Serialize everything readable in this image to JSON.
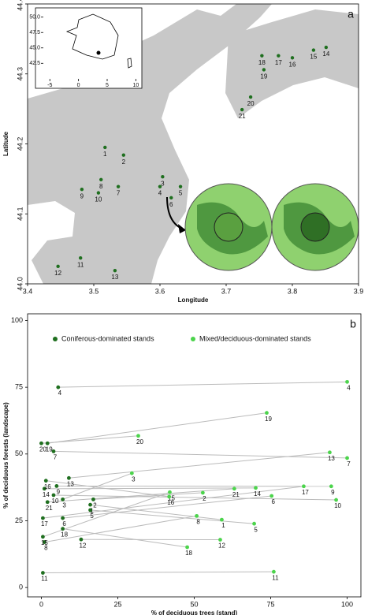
{
  "chart_data": [
    {
      "type": "map",
      "panel_label": "a",
      "xlabel": "Longitude",
      "ylabel": "Latitude",
      "xlim": [
        3.4,
        3.9
      ],
      "ylim": [
        44.0,
        44.4
      ],
      "xticks": [
        3.4,
        3.5,
        3.6,
        3.7,
        3.8,
        3.9
      ],
      "yticks": [
        {
          "value": 44,
          "label": "44.0"
        },
        44.1,
        44.2,
        44.3,
        44.4
      ],
      "color": "#1f6f1f",
      "labels": [
        "1",
        "2",
        "3",
        "4",
        "5",
        "6",
        "7",
        "8",
        "9",
        "10",
        "11",
        "12",
        "13",
        "14",
        "15",
        "16",
        "17",
        "18",
        "19",
        "20",
        "21"
      ],
      "x": [
        3.517,
        3.545,
        3.604,
        3.6,
        3.631,
        3.617,
        3.537,
        3.511,
        3.482,
        3.507,
        3.48,
        3.446,
        3.532,
        3.851,
        3.832,
        3.8,
        3.779,
        3.754,
        3.757,
        3.737,
        3.724
      ],
      "y": [
        44.195,
        44.184,
        44.153,
        44.139,
        44.139,
        44.123,
        44.139,
        44.149,
        44.135,
        44.13,
        44.037,
        44.025,
        44.019,
        44.338,
        44.334,
        44.323,
        44.326,
        44.326,
        44.306,
        44.267,
        44.249
      ]
    },
    {
      "type": "inset",
      "xlim": [
        -6,
        10.5
      ],
      "ylim": [
        41,
        51.5
      ],
      "xticks": [
        -5,
        0,
        5,
        10
      ],
      "yticks": [
        42.5,
        {
          "value": 45,
          "label": "45.0"
        },
        47.5,
        {
          "value": 50,
          "label": "50.0"
        }
      ]
    },
    {
      "type": "scatter",
      "panel_label": "b",
      "xlabel": "% of deciduous trees (stand)",
      "ylabel": "% of deciduous forests (landscape)",
      "xlim": [
        -4.5,
        104.5
      ],
      "ylim": [
        -3.5,
        102.5
      ],
      "xticks": [
        0,
        25,
        50,
        75,
        100
      ],
      "yticks": [
        0,
        25,
        50,
        75,
        100
      ],
      "labels": [
        "1",
        "2",
        "3",
        "4",
        "5",
        "6",
        "7",
        "8",
        "9",
        "10",
        "11",
        "12",
        "13",
        "14",
        "15",
        "16",
        "17",
        "18",
        "19",
        "20",
        "21"
      ],
      "series": [
        {
          "name": "Coniferous-dominated stands",
          "color": "#1f6f1f",
          "x": [
            16,
            17,
            7,
            5.5,
            16,
            7,
            4,
            1,
            5,
            4,
            0.5,
            13,
            9,
            1,
            0.5,
            1.5,
            0.5,
            7,
            2,
            0,
            2
          ],
          "y": [
            31,
            33,
            33,
            75,
            29,
            26,
            51,
            17,
            38,
            34.6,
            5.5,
            18,
            41,
            37,
            19,
            40,
            26,
            22,
            54,
            54,
            32
          ]
        },
        {
          "name": "Mixed/deciduous-dominated stands",
          "color": "#4cd44c",
          "x": [
            59,
            52.8,
            29.6,
            100,
            69.6,
            75.3,
            100,
            50.8,
            94.8,
            96.4,
            76,
            58.5,
            94.3,
            70.1,
            42,
            41.8,
            85.8,
            47.7,
            73.7,
            31.7,
            63.1
          ],
          "y": [
            25.4,
            35.5,
            42.8,
            77,
            23.9,
            34.3,
            48.5,
            26.8,
            37.9,
            32.8,
            5.9,
            17.9,
            50.6,
            37.3,
            35.7,
            34,
            37.9,
            15.1,
            65.4,
            56.8,
            37
          ]
        }
      ]
    }
  ]
}
